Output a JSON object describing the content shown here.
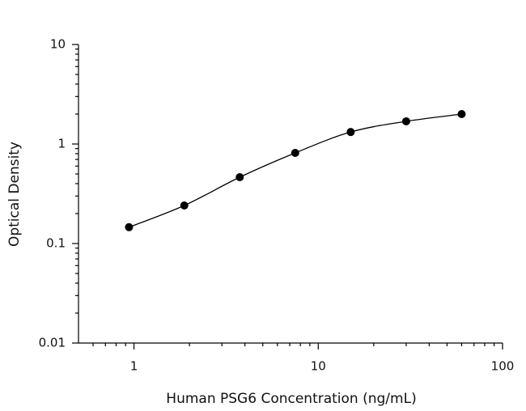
{
  "chart_data": {
    "type": "scatter",
    "x_label": "Human PSG6 Concentration (ng/mL)",
    "y_label": "Optical Density",
    "x": [
      0.94,
      1.875,
      3.75,
      7.5,
      15,
      30,
      60
    ],
    "values": [
      0.146,
      0.241,
      0.464,
      0.814,
      1.32,
      1.69,
      2.0
    ],
    "color": "#000000",
    "fit_line": true,
    "minor_ticks": true,
    "x_log": true,
    "y_log": true,
    "xlim": [
      0.5,
      100
    ],
    "ylim": [
      0.01,
      10
    ],
    "xticks": [
      1,
      10,
      100
    ],
    "yticks": [
      0.01,
      0.1,
      1,
      10
    ]
  }
}
